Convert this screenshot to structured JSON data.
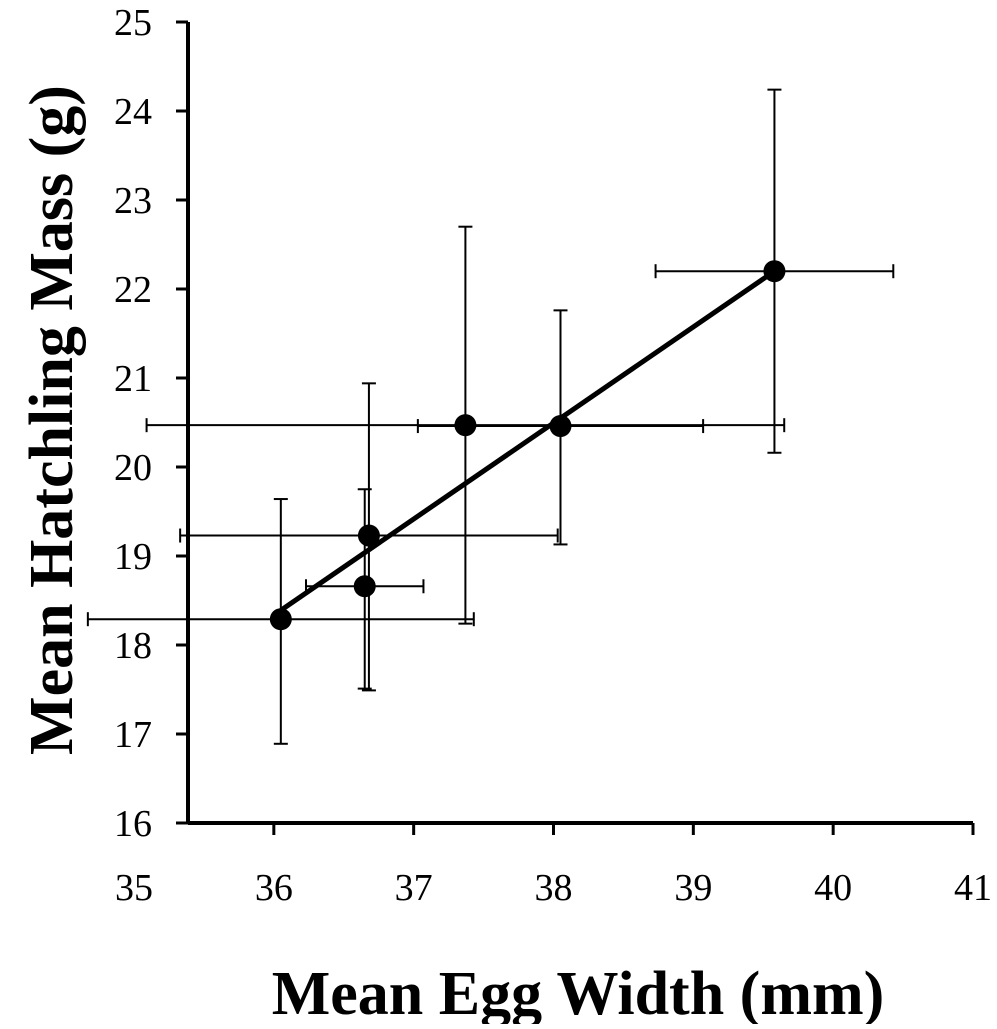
{
  "chart_data": {
    "type": "scatter",
    "xlabel": "Mean Egg Width (mm)",
    "ylabel": "Mean Hatchling Mass (g)",
    "xlim": [
      35,
      41
    ],
    "ylim": [
      16,
      25
    ],
    "x_ticks": [
      "35",
      "36",
      "37",
      "38",
      "39",
      "40",
      "41"
    ],
    "y_ticks": [
      "16",
      "17",
      "18",
      "19",
      "20",
      "21",
      "22",
      "23",
      "24",
      "25"
    ],
    "grid": false,
    "legend": "none",
    "colors": {
      "marker": "#000000",
      "line": "#000000",
      "axis": "#000000"
    },
    "series": [
      {
        "points": [
          {
            "x": 36.05,
            "y": 18.29,
            "xerr": [
              1.38,
              1.38
            ],
            "yerr": [
              1.4,
              1.35
            ]
          },
          {
            "x": 36.65,
            "y": 18.66,
            "xerr": [
              0.42,
              0.42
            ],
            "yerr": [
              1.15,
              1.09
            ]
          },
          {
            "x": 36.68,
            "y": 19.23,
            "xerr": [
              1.35,
              1.35
            ],
            "yerr": [
              1.74,
              1.71
            ]
          },
          {
            "x": 37.37,
            "y": 20.47,
            "xerr": [
              2.28,
              2.28
            ],
            "yerr": [
              2.23,
              2.23
            ]
          },
          {
            "x": 38.05,
            "y": 20.46,
            "xerr": [
              1.02,
              1.02
            ],
            "yerr": [
              1.33,
              1.3
            ]
          },
          {
            "x": 39.58,
            "y": 22.2,
            "xerr": [
              0.85,
              0.85
            ],
            "yerr": [
              2.04,
              2.04
            ]
          }
        ]
      }
    ],
    "trendline": {
      "x": [
        36.05,
        39.58
      ],
      "y": [
        18.39,
        22.2
      ]
    }
  }
}
